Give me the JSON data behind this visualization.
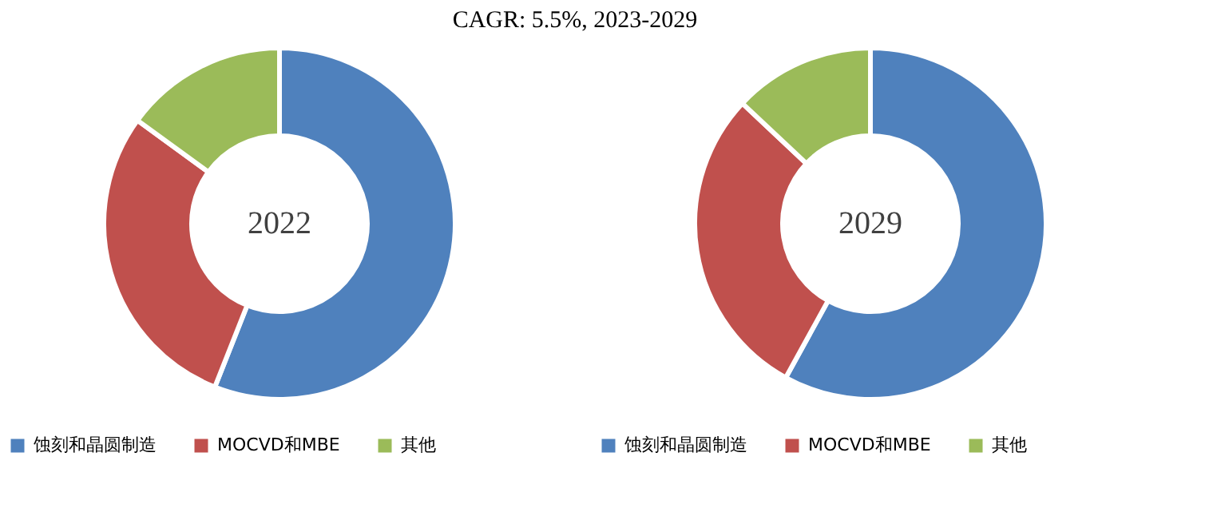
{
  "chart_data": [
    {
      "type": "donut",
      "title": "CAGR: 5.5%, 2023-2029",
      "annotations": [
        "2022"
      ],
      "categories": [
        "蚀刻和晶圆制造",
        "MOCVD和MBE",
        "其他"
      ],
      "values": [
        56,
        29,
        15
      ],
      "colors": [
        "#4f81bd",
        "#c0504d",
        "#9bbb59"
      ],
      "legend": "bottom"
    },
    {
      "type": "donut",
      "annotations": [
        "2029"
      ],
      "categories": [
        "蚀刻和晶圆制造",
        "MOCVD和MBE",
        "其他"
      ],
      "values": [
        58,
        29,
        13
      ],
      "colors": [
        "#4f81bd",
        "#c0504d",
        "#9bbb59"
      ],
      "legend": "bottom"
    }
  ]
}
